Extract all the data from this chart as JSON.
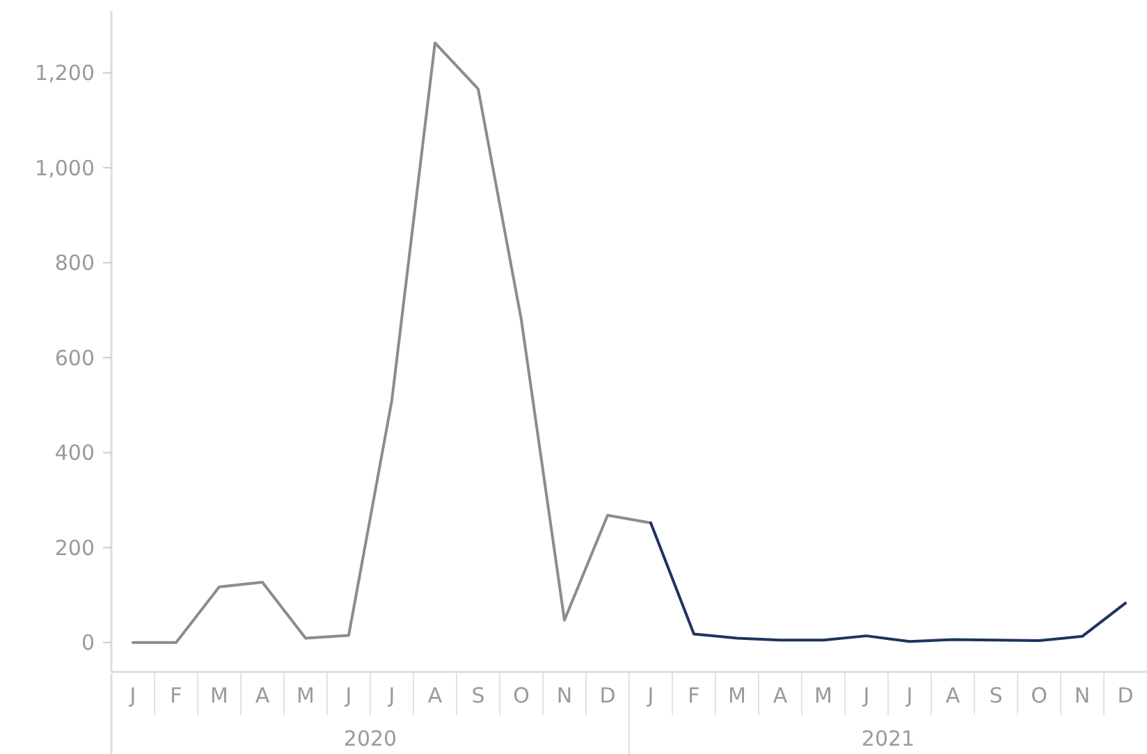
{
  "chart_data": {
    "type": "line",
    "categories": [
      "J",
      "F",
      "M",
      "A",
      "M",
      "J",
      "J",
      "A",
      "S",
      "O",
      "N",
      "D",
      "J",
      "F",
      "M",
      "A",
      "M",
      "J",
      "J",
      "A",
      "S",
      "O",
      "N",
      "D"
    ],
    "series": [
      {
        "color": "#8c8c8c",
        "values": [
          0,
          0,
          117,
          127,
          9,
          15,
          510,
          1263,
          1166,
          680,
          47,
          268,
          252,
          null,
          null,
          null,
          null,
          null,
          null,
          null,
          null,
          null,
          null,
          null
        ]
      },
      {
        "color": "#1f3360",
        "values": [
          null,
          null,
          null,
          null,
          null,
          null,
          null,
          null,
          null,
          null,
          null,
          null,
          252,
          18,
          9,
          5,
          5,
          14,
          2,
          6,
          5,
          4,
          13,
          83
        ]
      }
    ],
    "ylim": [
      -62,
      1330
    ],
    "yticks": [
      0,
      200,
      400,
      600,
      800,
      {
        "value": 1000,
        "label": "1,000"
      },
      {
        "value": 1200,
        "label": "1,200"
      }
    ],
    "annotations": [
      "2020",
      "2021"
    ],
    "grid": false,
    "marker": "none",
    "line_style": "solid"
  }
}
